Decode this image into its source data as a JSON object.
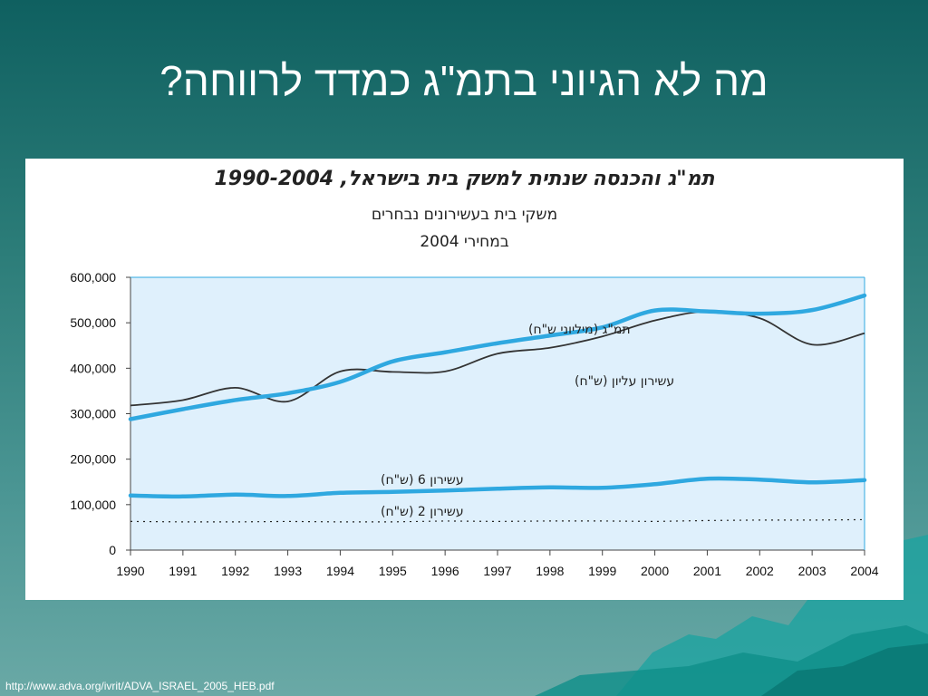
{
  "slide": {
    "title": "מה לא הגיוני בתמ\"ג כמדד לרווחה?",
    "source_url": "http://www.adva.org/ivrit/ADVA_ISRAEL_2005_HEB.pdf"
  },
  "colors": {
    "background_top": "#0f6060",
    "plot_bg": "#dff0fc",
    "gdp_line": "#2fa8e0",
    "decile_line": "#333333"
  },
  "chart_data": {
    "type": "line",
    "title": "תמ\"ג והכנסה שנתית למשק בית בישראל, 1990-2004",
    "subtitle": "משקי בית בעשירונים נבחרים",
    "subtitle2": "במחירי 2004",
    "xlabel": "",
    "ylabel": "",
    "ylim": [
      0,
      600000
    ],
    "y_ticks": [
      "0",
      "100,000",
      "200,000",
      "300,000",
      "400,000",
      "500,000",
      "600,000"
    ],
    "x": [
      "1990",
      "1991",
      "1992",
      "1993",
      "1994",
      "1995",
      "1996",
      "1997",
      "1998",
      "1999",
      "2000",
      "2001",
      "2002",
      "2003",
      "2004"
    ],
    "grid": false,
    "series": [
      {
        "name": "תמ\"ג (מיליוני ש\"ח)",
        "style": "thick",
        "values": [
          288000,
          310000,
          330000,
          345000,
          370000,
          415000,
          435000,
          455000,
          472000,
          490000,
          527000,
          525000,
          520000,
          528000,
          560000
        ]
      },
      {
        "name": "עשירון עליון (ש\"ח)",
        "style": "thin",
        "values": [
          318000,
          330000,
          357000,
          327000,
          393000,
          392000,
          393000,
          432000,
          445000,
          470000,
          505000,
          525000,
          510000,
          452000,
          477000
        ]
      },
      {
        "name": "עשירון 6 (ש\"ח)",
        "style": "thick",
        "values": [
          120000,
          118000,
          122000,
          119000,
          126000,
          128000,
          131000,
          135000,
          138000,
          137000,
          145000,
          157000,
          155000,
          149000,
          154000
        ]
      },
      {
        "name": "עשירון 2 (ש\"ח)",
        "style": "dotted",
        "values": [
          63000,
          62000,
          62000,
          63000,
          62000,
          62000,
          64000,
          63000,
          64000,
          64000,
          63000,
          65000,
          66000,
          66000,
          67000
        ]
      }
    ]
  }
}
